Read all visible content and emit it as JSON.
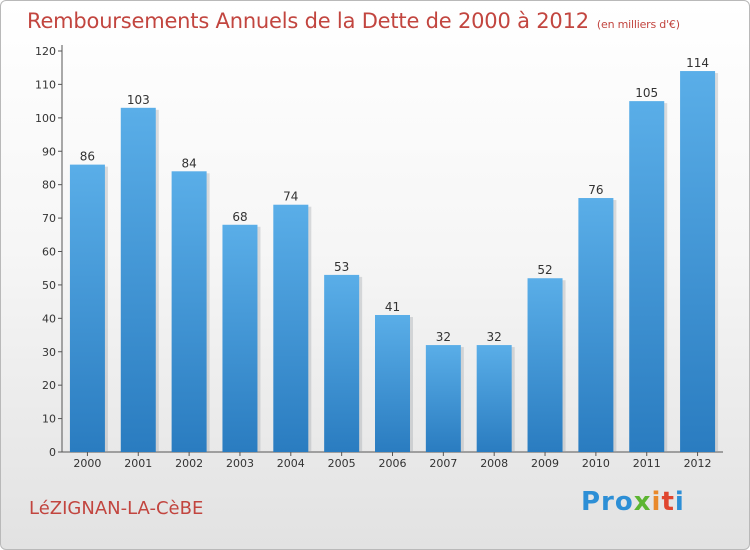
{
  "chart_data": {
    "type": "bar",
    "title": "Remboursements Annuels de la Dette de 2000 à 2012",
    "subtitle": "(en milliers d'€)",
    "categories": [
      "2000",
      "2001",
      "2002",
      "2003",
      "2004",
      "2005",
      "2006",
      "2007",
      "2008",
      "2009",
      "2010",
      "2011",
      "2012"
    ],
    "values": [
      86,
      103,
      84,
      68,
      74,
      53,
      41,
      32,
      32,
      52,
      76,
      105,
      114
    ],
    "xlabel": "",
    "ylabel": "",
    "ylim": [
      0,
      120
    ],
    "yticks": [
      0,
      10,
      20,
      30,
      40,
      50,
      60,
      70,
      80,
      90,
      100,
      110,
      120
    ],
    "grid": false,
    "bar_color_top": "#5aaee8",
    "bar_color_bottom": "#2a7cc0"
  },
  "footer": {
    "place": "LéZIGNAN-LA-CèBE",
    "logo": {
      "p1": "Pro",
      "p2": "x",
      "p3": "i",
      "p4": "t",
      "p5": "i"
    }
  }
}
